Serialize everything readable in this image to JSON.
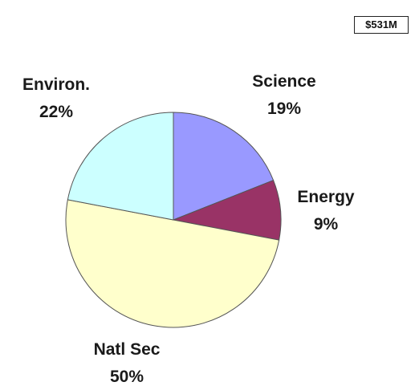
{
  "total_badge": "$531M",
  "chart_data": {
    "type": "pie",
    "start_angle_deg": 0,
    "direction": "clockwise",
    "slices": [
      {
        "name": "Science",
        "label": "Science",
        "percent_label": "19%",
        "value": 19,
        "color": "#9999ff"
      },
      {
        "name": "Energy",
        "label": "Energy",
        "percent_label": "9%",
        "value": 9,
        "color": "#993366"
      },
      {
        "name": "Natl Sec",
        "label": "Natl Sec",
        "percent_label": "50%",
        "value": 50,
        "color": "#ffffcc"
      },
      {
        "name": "Environ.",
        "label": "Environ.",
        "percent_label": "22%",
        "value": 22,
        "color": "#ccffff"
      }
    ],
    "legend": "none",
    "grid": false
  }
}
